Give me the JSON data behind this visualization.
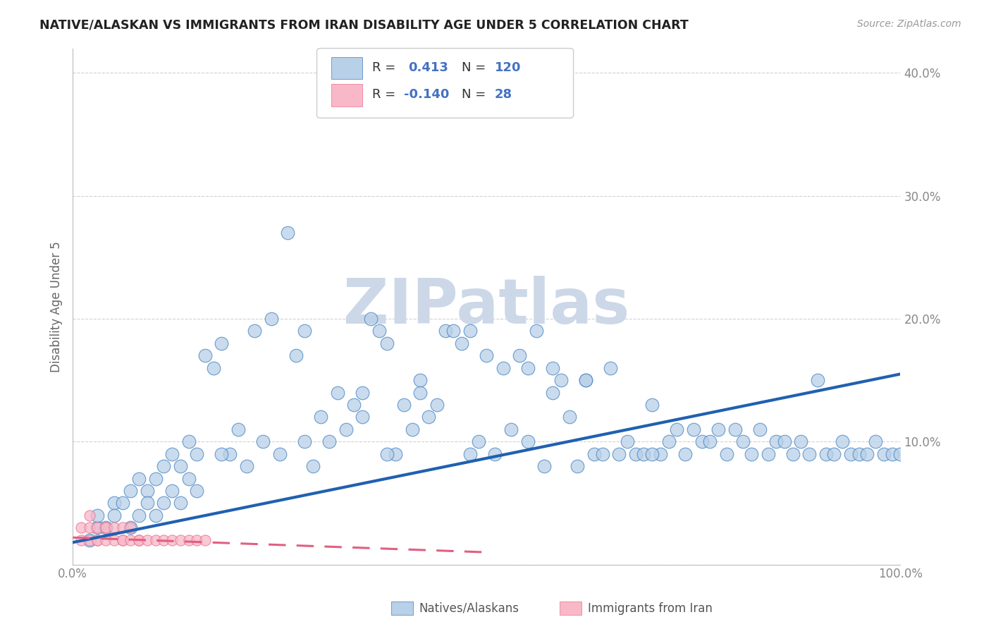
{
  "title": "NATIVE/ALASKAN VS IMMIGRANTS FROM IRAN DISABILITY AGE UNDER 5 CORRELATION CHART",
  "source": "Source: ZipAtlas.com",
  "ylabel": "Disability Age Under 5",
  "y_ticks": [
    0.0,
    0.1,
    0.2,
    0.3,
    0.4
  ],
  "y_tick_labels_right": [
    "",
    "10.0%",
    "20.0%",
    "30.0%",
    "40.0%"
  ],
  "x_range": [
    0,
    1.0
  ],
  "y_range": [
    0,
    0.42
  ],
  "watermark": "ZIPatlas",
  "blue_r": 0.413,
  "blue_n": 120,
  "pink_r": -0.14,
  "pink_n": 28,
  "blue_fill": "#b8d0e8",
  "pink_fill": "#f8b8c8",
  "blue_edge": "#4080c0",
  "pink_edge": "#e87090",
  "blue_line": "#2060b0",
  "pink_line": "#e06080",
  "title_color": "#222222",
  "axis_color": "#bbbbbb",
  "grid_color": "#cccccc",
  "watermark_color": "#ccd8e8",
  "legend_text_color": "#4472c4",
  "tick_color": "#888888",
  "blue_trend_x0": 0.0,
  "blue_trend_y0": 0.018,
  "blue_trend_x1": 1.0,
  "blue_trend_y1": 0.155,
  "pink_trend_x0": 0.0,
  "pink_trend_y0": 0.022,
  "pink_trend_x1": 0.5,
  "pink_trend_y1": 0.01,
  "blue_x": [
    0.02,
    0.03,
    0.03,
    0.04,
    0.05,
    0.05,
    0.06,
    0.07,
    0.07,
    0.08,
    0.08,
    0.09,
    0.09,
    0.1,
    0.1,
    0.11,
    0.11,
    0.12,
    0.12,
    0.13,
    0.13,
    0.14,
    0.14,
    0.15,
    0.15,
    0.16,
    0.17,
    0.18,
    0.19,
    0.2,
    0.21,
    0.22,
    0.23,
    0.24,
    0.25,
    0.26,
    0.27,
    0.28,
    0.29,
    0.3,
    0.31,
    0.32,
    0.33,
    0.34,
    0.35,
    0.36,
    0.37,
    0.38,
    0.39,
    0.4,
    0.41,
    0.42,
    0.43,
    0.44,
    0.45,
    0.46,
    0.47,
    0.48,
    0.49,
    0.5,
    0.51,
    0.52,
    0.53,
    0.54,
    0.55,
    0.56,
    0.57,
    0.58,
    0.59,
    0.6,
    0.61,
    0.62,
    0.63,
    0.64,
    0.65,
    0.66,
    0.67,
    0.68,
    0.69,
    0.7,
    0.71,
    0.72,
    0.73,
    0.74,
    0.75,
    0.76,
    0.77,
    0.78,
    0.79,
    0.8,
    0.81,
    0.82,
    0.83,
    0.84,
    0.85,
    0.86,
    0.87,
    0.88,
    0.89,
    0.9,
    0.91,
    0.92,
    0.93,
    0.94,
    0.95,
    0.96,
    0.97,
    0.98,
    0.99,
    1.0,
    0.35,
    0.42,
    0.55,
    0.62,
    0.7,
    0.58,
    0.48,
    0.38,
    0.28,
    0.18
  ],
  "blue_y": [
    0.02,
    0.03,
    0.04,
    0.03,
    0.05,
    0.04,
    0.05,
    0.06,
    0.03,
    0.07,
    0.04,
    0.06,
    0.05,
    0.07,
    0.04,
    0.08,
    0.05,
    0.09,
    0.06,
    0.08,
    0.05,
    0.1,
    0.07,
    0.09,
    0.06,
    0.17,
    0.16,
    0.18,
    0.09,
    0.11,
    0.08,
    0.19,
    0.1,
    0.2,
    0.09,
    0.27,
    0.17,
    0.19,
    0.08,
    0.12,
    0.1,
    0.14,
    0.11,
    0.13,
    0.12,
    0.2,
    0.19,
    0.18,
    0.09,
    0.13,
    0.11,
    0.14,
    0.12,
    0.13,
    0.19,
    0.19,
    0.18,
    0.19,
    0.1,
    0.17,
    0.09,
    0.16,
    0.11,
    0.17,
    0.1,
    0.19,
    0.08,
    0.16,
    0.15,
    0.12,
    0.08,
    0.15,
    0.09,
    0.09,
    0.16,
    0.09,
    0.1,
    0.09,
    0.09,
    0.13,
    0.09,
    0.1,
    0.11,
    0.09,
    0.11,
    0.1,
    0.1,
    0.11,
    0.09,
    0.11,
    0.1,
    0.09,
    0.11,
    0.09,
    0.1,
    0.1,
    0.09,
    0.1,
    0.09,
    0.15,
    0.09,
    0.09,
    0.1,
    0.09,
    0.09,
    0.09,
    0.1,
    0.09,
    0.09,
    0.09,
    0.14,
    0.15,
    0.16,
    0.15,
    0.09,
    0.14,
    0.09,
    0.09,
    0.1,
    0.09
  ],
  "pink_x": [
    0.01,
    0.01,
    0.02,
    0.02,
    0.02,
    0.03,
    0.03,
    0.03,
    0.04,
    0.04,
    0.04,
    0.05,
    0.05,
    0.06,
    0.06,
    0.06,
    0.07,
    0.07,
    0.08,
    0.08,
    0.09,
    0.1,
    0.11,
    0.12,
    0.13,
    0.14,
    0.15,
    0.16
  ],
  "pink_y": [
    0.02,
    0.03,
    0.02,
    0.03,
    0.04,
    0.02,
    0.03,
    0.02,
    0.03,
    0.02,
    0.03,
    0.02,
    0.03,
    0.02,
    0.03,
    0.02,
    0.02,
    0.03,
    0.02,
    0.02,
    0.02,
    0.02,
    0.02,
    0.02,
    0.02,
    0.02,
    0.02,
    0.02
  ]
}
